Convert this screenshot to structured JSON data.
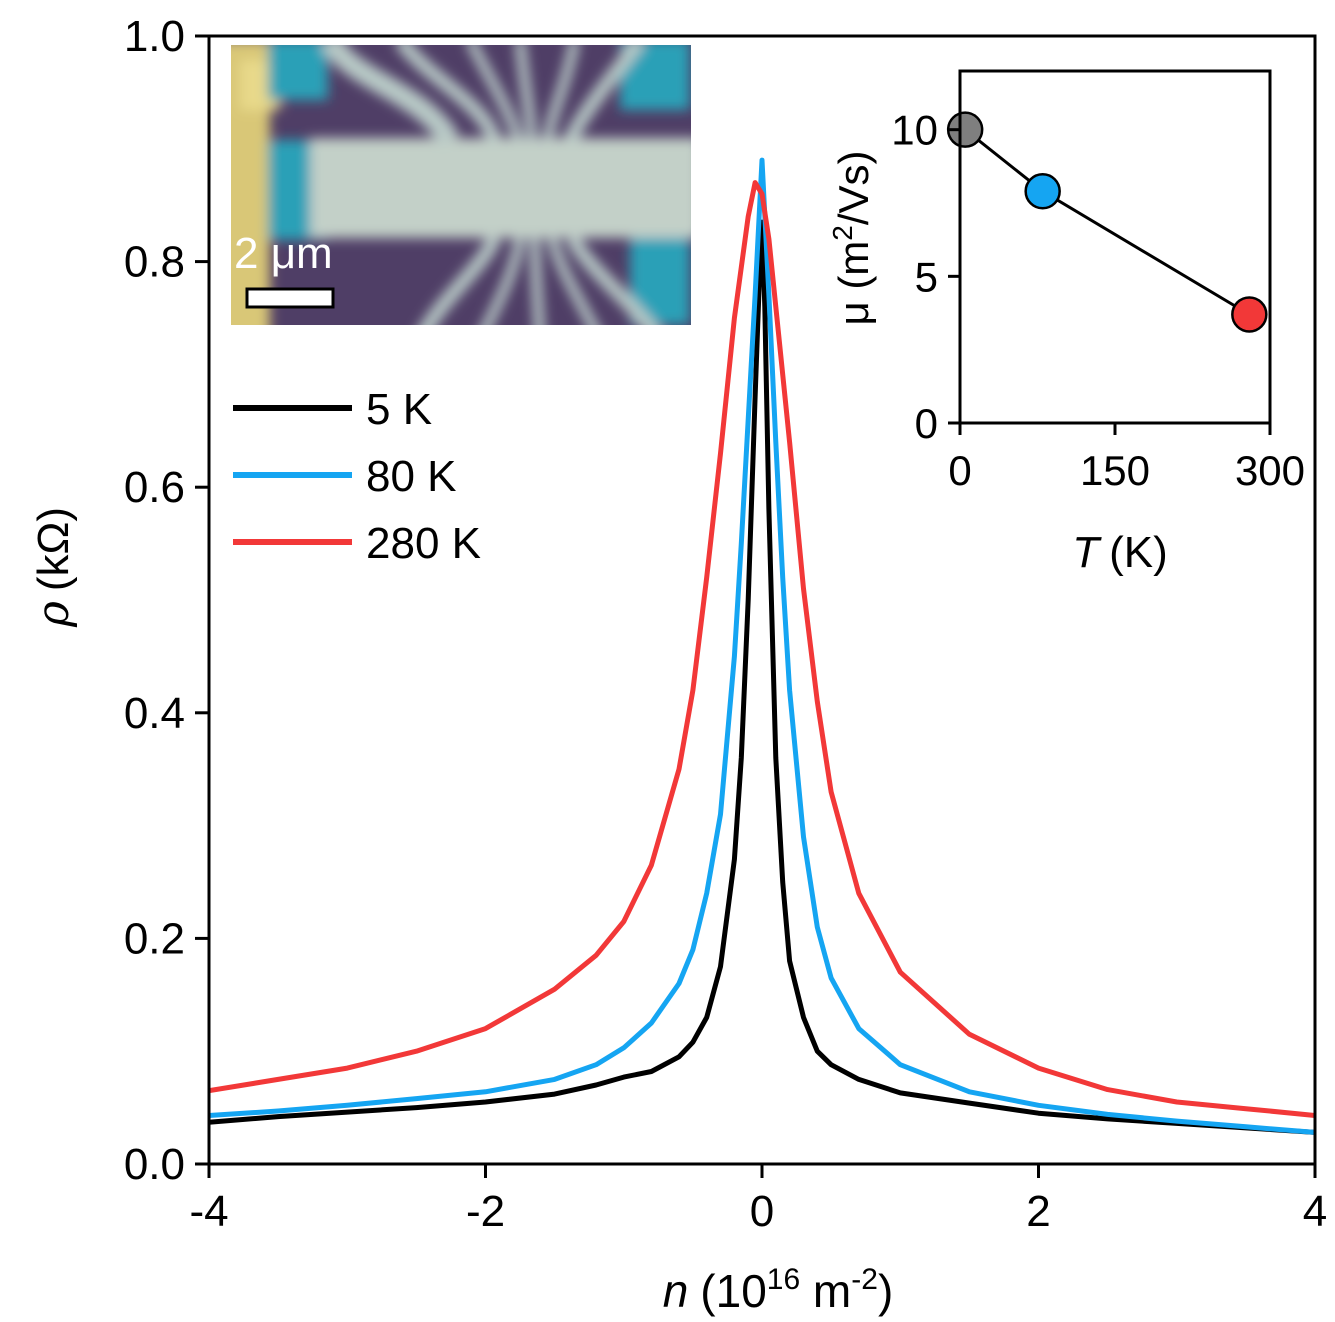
{
  "chart_data": [
    {
      "type": "line",
      "title": "",
      "xlabel_italic": "n",
      "xlabel_pre": "(10",
      "xlabel_sup1": "16",
      "xlabel_mid": " m",
      "xlabel_sup2": "-2",
      "xlabel_post": ")",
      "ylabel_italic": "ρ",
      "ylabel_rest": "(kΩ)",
      "xlim": [
        -4,
        4
      ],
      "ylim": [
        0,
        1.0
      ],
      "x_ticks": [
        -4,
        -2,
        0,
        2,
        4
      ],
      "x_tick_labels": [
        "-4",
        "-2",
        "0",
        "2",
        "4"
      ],
      "y_ticks": [
        0,
        0.2,
        0.4,
        0.6,
        0.8,
        1.0
      ],
      "y_tick_labels": [
        "0.0",
        "0.2",
        "0.4",
        "0.6",
        "0.8",
        "1.0"
      ],
      "legend_position": "upper-left",
      "series": [
        {
          "name": "5 K",
          "color": "#000000",
          "x": [
            -4,
            -3.5,
            -3,
            -2.5,
            -2,
            -1.5,
            -1.2,
            -1,
            -0.8,
            -0.6,
            -0.5,
            -0.4,
            -0.3,
            -0.2,
            -0.15,
            -0.1,
            -0.05,
            -0.02,
            0,
            0.02,
            0.05,
            0.1,
            0.15,
            0.2,
            0.3,
            0.4,
            0.5,
            0.7,
            1,
            1.5,
            2,
            2.5,
            3,
            3.5,
            4
          ],
          "values": [
            0.037,
            0.042,
            0.046,
            0.05,
            0.055,
            0.062,
            0.07,
            0.077,
            0.082,
            0.095,
            0.108,
            0.13,
            0.175,
            0.27,
            0.36,
            0.5,
            0.68,
            0.78,
            0.835,
            0.76,
            0.58,
            0.36,
            0.25,
            0.18,
            0.13,
            0.1,
            0.088,
            0.075,
            0.063,
            0.054,
            0.045,
            0.04,
            0.036,
            0.032,
            0.028
          ]
        },
        {
          "name": "80 K",
          "color": "#15a5f2",
          "x": [
            -4,
            -3.5,
            -3,
            -2.5,
            -2,
            -1.5,
            -1.2,
            -1,
            -0.8,
            -0.6,
            -0.5,
            -0.4,
            -0.3,
            -0.2,
            -0.15,
            -0.1,
            -0.05,
            0,
            0.05,
            0.1,
            0.15,
            0.2,
            0.3,
            0.4,
            0.5,
            0.7,
            1,
            1.5,
            2,
            2.5,
            3,
            3.5,
            4
          ],
          "values": [
            0.043,
            0.047,
            0.052,
            0.058,
            0.064,
            0.075,
            0.088,
            0.103,
            0.125,
            0.16,
            0.19,
            0.24,
            0.31,
            0.45,
            0.55,
            0.66,
            0.77,
            0.89,
            0.77,
            0.64,
            0.52,
            0.42,
            0.29,
            0.21,
            0.165,
            0.12,
            0.088,
            0.064,
            0.052,
            0.044,
            0.038,
            0.033,
            0.028
          ]
        },
        {
          "name": "280 K",
          "color": "#f23838",
          "x": [
            -4,
            -3.5,
            -3,
            -2.5,
            -2,
            -1.5,
            -1.2,
            -1,
            -0.8,
            -0.6,
            -0.5,
            -0.4,
            -0.3,
            -0.2,
            -0.1,
            -0.05,
            0,
            0.05,
            0.1,
            0.2,
            0.3,
            0.4,
            0.5,
            0.7,
            1,
            1.5,
            2,
            2.5,
            3,
            3.5,
            4
          ],
          "values": [
            0.065,
            0.075,
            0.085,
            0.1,
            0.12,
            0.155,
            0.185,
            0.215,
            0.265,
            0.35,
            0.42,
            0.52,
            0.63,
            0.75,
            0.84,
            0.87,
            0.86,
            0.82,
            0.76,
            0.64,
            0.51,
            0.41,
            0.33,
            0.24,
            0.17,
            0.115,
            0.085,
            0.066,
            0.055,
            0.049,
            0.043
          ]
        }
      ]
    },
    {
      "type": "scatter",
      "title": "",
      "xlabel_italic": "T",
      "xlabel_rest": "(K)",
      "ylabel_pre": "μ (m",
      "ylabel_sup": "2",
      "ylabel_post": "/Vs)",
      "xlim": [
        0,
        300
      ],
      "ylim": [
        0,
        12
      ],
      "x_ticks": [
        0,
        150,
        300
      ],
      "x_tick_labels": [
        "0",
        "150",
        "300"
      ],
      "y_ticks": [
        0,
        5,
        10
      ],
      "y_tick_labels": [
        "0",
        "5",
        "10"
      ],
      "points": [
        {
          "x": 5,
          "y": 10.0,
          "color": "#7f7f7f"
        },
        {
          "x": 80,
          "y": 7.9,
          "color": "#15a5f2"
        },
        {
          "x": 280,
          "y": 3.7,
          "color": "#f23838"
        }
      ]
    }
  ],
  "micrograph": {
    "scale_label": "2 μm"
  }
}
